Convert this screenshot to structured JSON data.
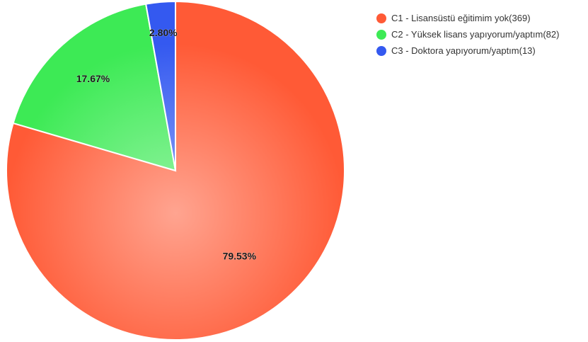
{
  "chart_data": {
    "type": "pie",
    "title": "",
    "slices": [
      {
        "legend": "C1 - Lisansüstü eğitimim yok(369)",
        "count": 369,
        "percent_label": "79.53%",
        "percent": 79.53,
        "color": "#ff5a36"
      },
      {
        "legend": "C2 - Yüksek lisans yapıyorum/yaptım(82)",
        "count": 82,
        "percent_label": "17.67%",
        "percent": 17.67,
        "color": "#3dea55"
      },
      {
        "legend": "C3 - Doktora yapıyorum/yaptım(13)",
        "count": 13,
        "percent_label": "2.80%",
        "percent": 2.8,
        "color": "#3459f0"
      }
    ],
    "legend_position": "top-right",
    "start_angle_deg": 0,
    "direction": "clockwise"
  }
}
